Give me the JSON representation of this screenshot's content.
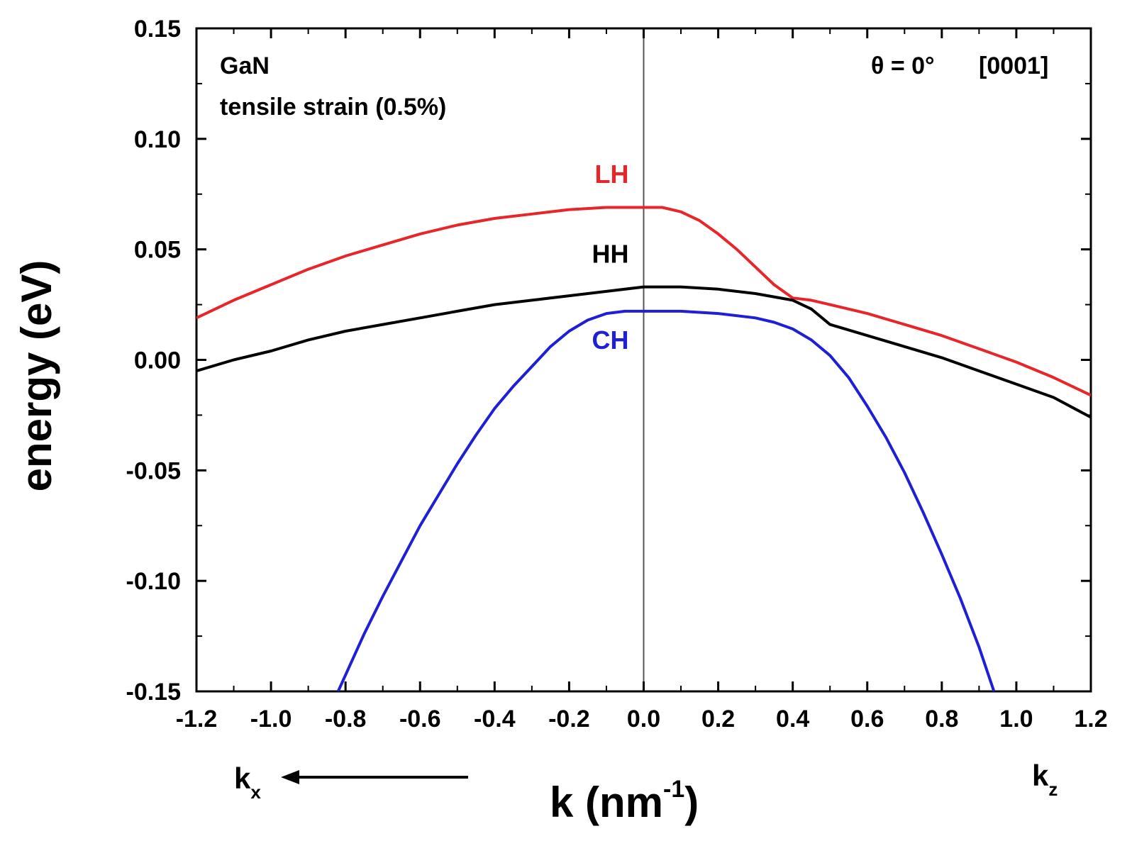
{
  "chart_data": {
    "type": "line",
    "xlabel": "k (nm",
    "xlabel_sup": "-1",
    "xlabel_close": ")",
    "ylabel": "energy (eV)",
    "xlim": [
      -1.2,
      1.2
    ],
    "ylim": [
      -0.15,
      0.15
    ],
    "x_ticks": [
      "-1.2",
      "-1.0",
      "-0.8",
      "-0.6",
      "-0.4",
      "-0.2",
      "0.0",
      "0.2",
      "0.4",
      "0.6",
      "0.8",
      "1.0",
      "1.2"
    ],
    "y_ticks": [
      "0.15",
      "0.10",
      "0.05",
      "0.00",
      "-0.05",
      "-0.10",
      "-0.15"
    ],
    "grid": false,
    "vertical_line_at_x": 0.0,
    "annotations": {
      "material": "GaN",
      "strain": "tensile strain (0.5%)",
      "angle": "θ = 0°",
      "direction": "[0001]"
    },
    "direction_labels": {
      "left": "k",
      "left_sub": "x",
      "right": "k",
      "right_sub": "z"
    },
    "colors": {
      "LH": "#e8262a",
      "HH": "#000000",
      "CH": "#1f1fd6",
      "axis": "#000000"
    },
    "series": [
      {
        "name": "LH",
        "x": [
          -1.2,
          -1.1,
          -1.0,
          -0.9,
          -0.8,
          -0.7,
          -0.6,
          -0.5,
          -0.4,
          -0.3,
          -0.2,
          -0.1,
          0.0,
          0.05,
          0.1,
          0.15,
          0.2,
          0.25,
          0.3,
          0.35,
          0.4,
          0.45,
          0.5,
          0.6,
          0.7,
          0.8,
          0.9,
          1.0,
          1.1,
          1.2
        ],
        "y": [
          0.019,
          0.027,
          0.034,
          0.041,
          0.047,
          0.052,
          0.057,
          0.061,
          0.064,
          0.066,
          0.068,
          0.069,
          0.069,
          0.069,
          0.067,
          0.063,
          0.057,
          0.05,
          0.042,
          0.034,
          0.028,
          0.027,
          0.025,
          0.021,
          0.016,
          0.011,
          0.005,
          -0.001,
          -0.008,
          -0.016
        ]
      },
      {
        "name": "HH",
        "x": [
          -1.2,
          -1.1,
          -1.0,
          -0.9,
          -0.8,
          -0.7,
          -0.6,
          -0.5,
          -0.4,
          -0.3,
          -0.2,
          -0.1,
          0.0,
          0.1,
          0.2,
          0.3,
          0.4,
          0.45,
          0.5,
          0.6,
          0.7,
          0.8,
          0.9,
          1.0,
          1.1,
          1.2
        ],
        "y": [
          -0.005,
          0.0,
          0.004,
          0.009,
          0.013,
          0.016,
          0.019,
          0.022,
          0.025,
          0.027,
          0.029,
          0.031,
          0.033,
          0.033,
          0.032,
          0.03,
          0.027,
          0.023,
          0.016,
          0.011,
          0.006,
          0.001,
          -0.005,
          -0.011,
          -0.017,
          -0.026
        ]
      },
      {
        "name": "CH",
        "x": [
          -0.82,
          -0.75,
          -0.7,
          -0.65,
          -0.6,
          -0.55,
          -0.5,
          -0.45,
          -0.4,
          -0.35,
          -0.3,
          -0.25,
          -0.2,
          -0.15,
          -0.1,
          -0.05,
          0.0,
          0.1,
          0.2,
          0.3,
          0.35,
          0.4,
          0.45,
          0.5,
          0.55,
          0.6,
          0.65,
          0.7,
          0.75,
          0.8,
          0.85,
          0.9,
          0.94
        ],
        "y": [
          -0.15,
          -0.124,
          -0.107,
          -0.091,
          -0.075,
          -0.061,
          -0.047,
          -0.034,
          -0.022,
          -0.012,
          -0.003,
          0.006,
          0.013,
          0.018,
          0.021,
          0.022,
          0.022,
          0.022,
          0.021,
          0.019,
          0.017,
          0.014,
          0.009,
          0.002,
          -0.008,
          -0.021,
          -0.035,
          -0.051,
          -0.069,
          -0.088,
          -0.108,
          -0.13,
          -0.15
        ]
      }
    ],
    "curve_labels": [
      {
        "name": "LH",
        "x": -0.04,
        "y": 0.08
      },
      {
        "name": "HH",
        "x": -0.04,
        "y": 0.044
      },
      {
        "name": "CH",
        "x": -0.04,
        "y": 0.005
      }
    ]
  }
}
